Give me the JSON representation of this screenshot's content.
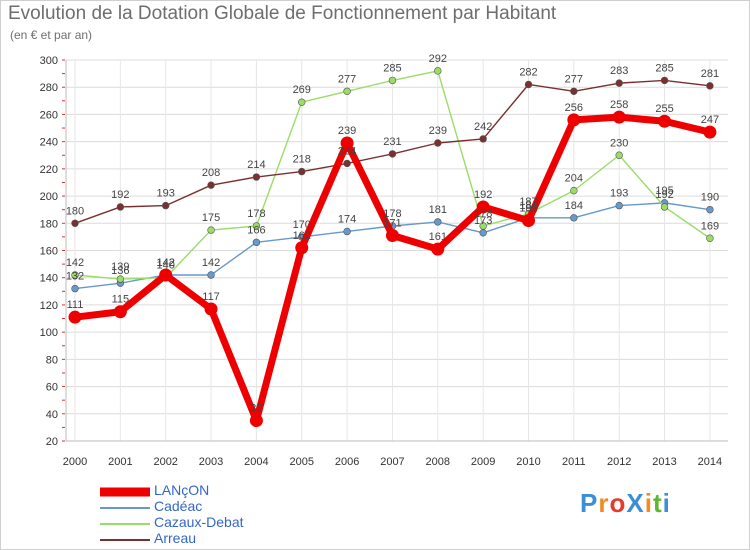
{
  "header": {
    "title": "Evolution de la Dotation Globale de Fonctionnement par Habitant",
    "subtitle": "(en € et par an)"
  },
  "logo": {
    "text": "ProXiti",
    "colors": [
      "#3a8fd6",
      "#f28c1c",
      "#e23c2c",
      "#3a8fd6",
      "#f28c1c",
      "#5cb82e",
      "#3a8fd6"
    ]
  },
  "chart_data": {
    "type": "line",
    "title": "Evolution de la Dotation Globale de Fonctionnement par Habitant",
    "ylabel": "(en € et par an)",
    "xlabel": "",
    "ylim": [
      20,
      300
    ],
    "yticks": [
      20,
      40,
      60,
      80,
      100,
      120,
      140,
      160,
      180,
      200,
      220,
      240,
      260,
      280,
      300
    ],
    "categories": [
      "2000",
      "2001",
      "2002",
      "2003",
      "2004",
      "2005",
      "2006",
      "2007",
      "2008",
      "2009",
      "2010",
      "2011",
      "2012",
      "2013",
      "2014"
    ],
    "grid": true,
    "legend_position": "bottom-left",
    "series": [
      {
        "name": "LANçON",
        "color": "#ee0000",
        "values": [
          111,
          115,
          142,
          117,
          35,
          162,
          239,
          171,
          161,
          192,
          182,
          256,
          258,
          255,
          247
        ]
      },
      {
        "name": "Cadéac",
        "color": "#6699cc",
        "values": [
          132,
          136,
          142,
          142,
          166,
          170,
          174,
          178,
          181,
          173,
          184,
          184,
          193,
          195,
          190
        ]
      },
      {
        "name": "Cazaux-Debat",
        "color": "#99dd66",
        "values": [
          142,
          139,
          140,
          175,
          178,
          269,
          277,
          285,
          292,
          178,
          187,
          204,
          230,
          192,
          169
        ]
      },
      {
        "name": "Arreau",
        "color": "#7a3030",
        "values": [
          180,
          192,
          193,
          208,
          214,
          218,
          224,
          231,
          239,
          242,
          282,
          277,
          283,
          285,
          281
        ]
      }
    ]
  }
}
